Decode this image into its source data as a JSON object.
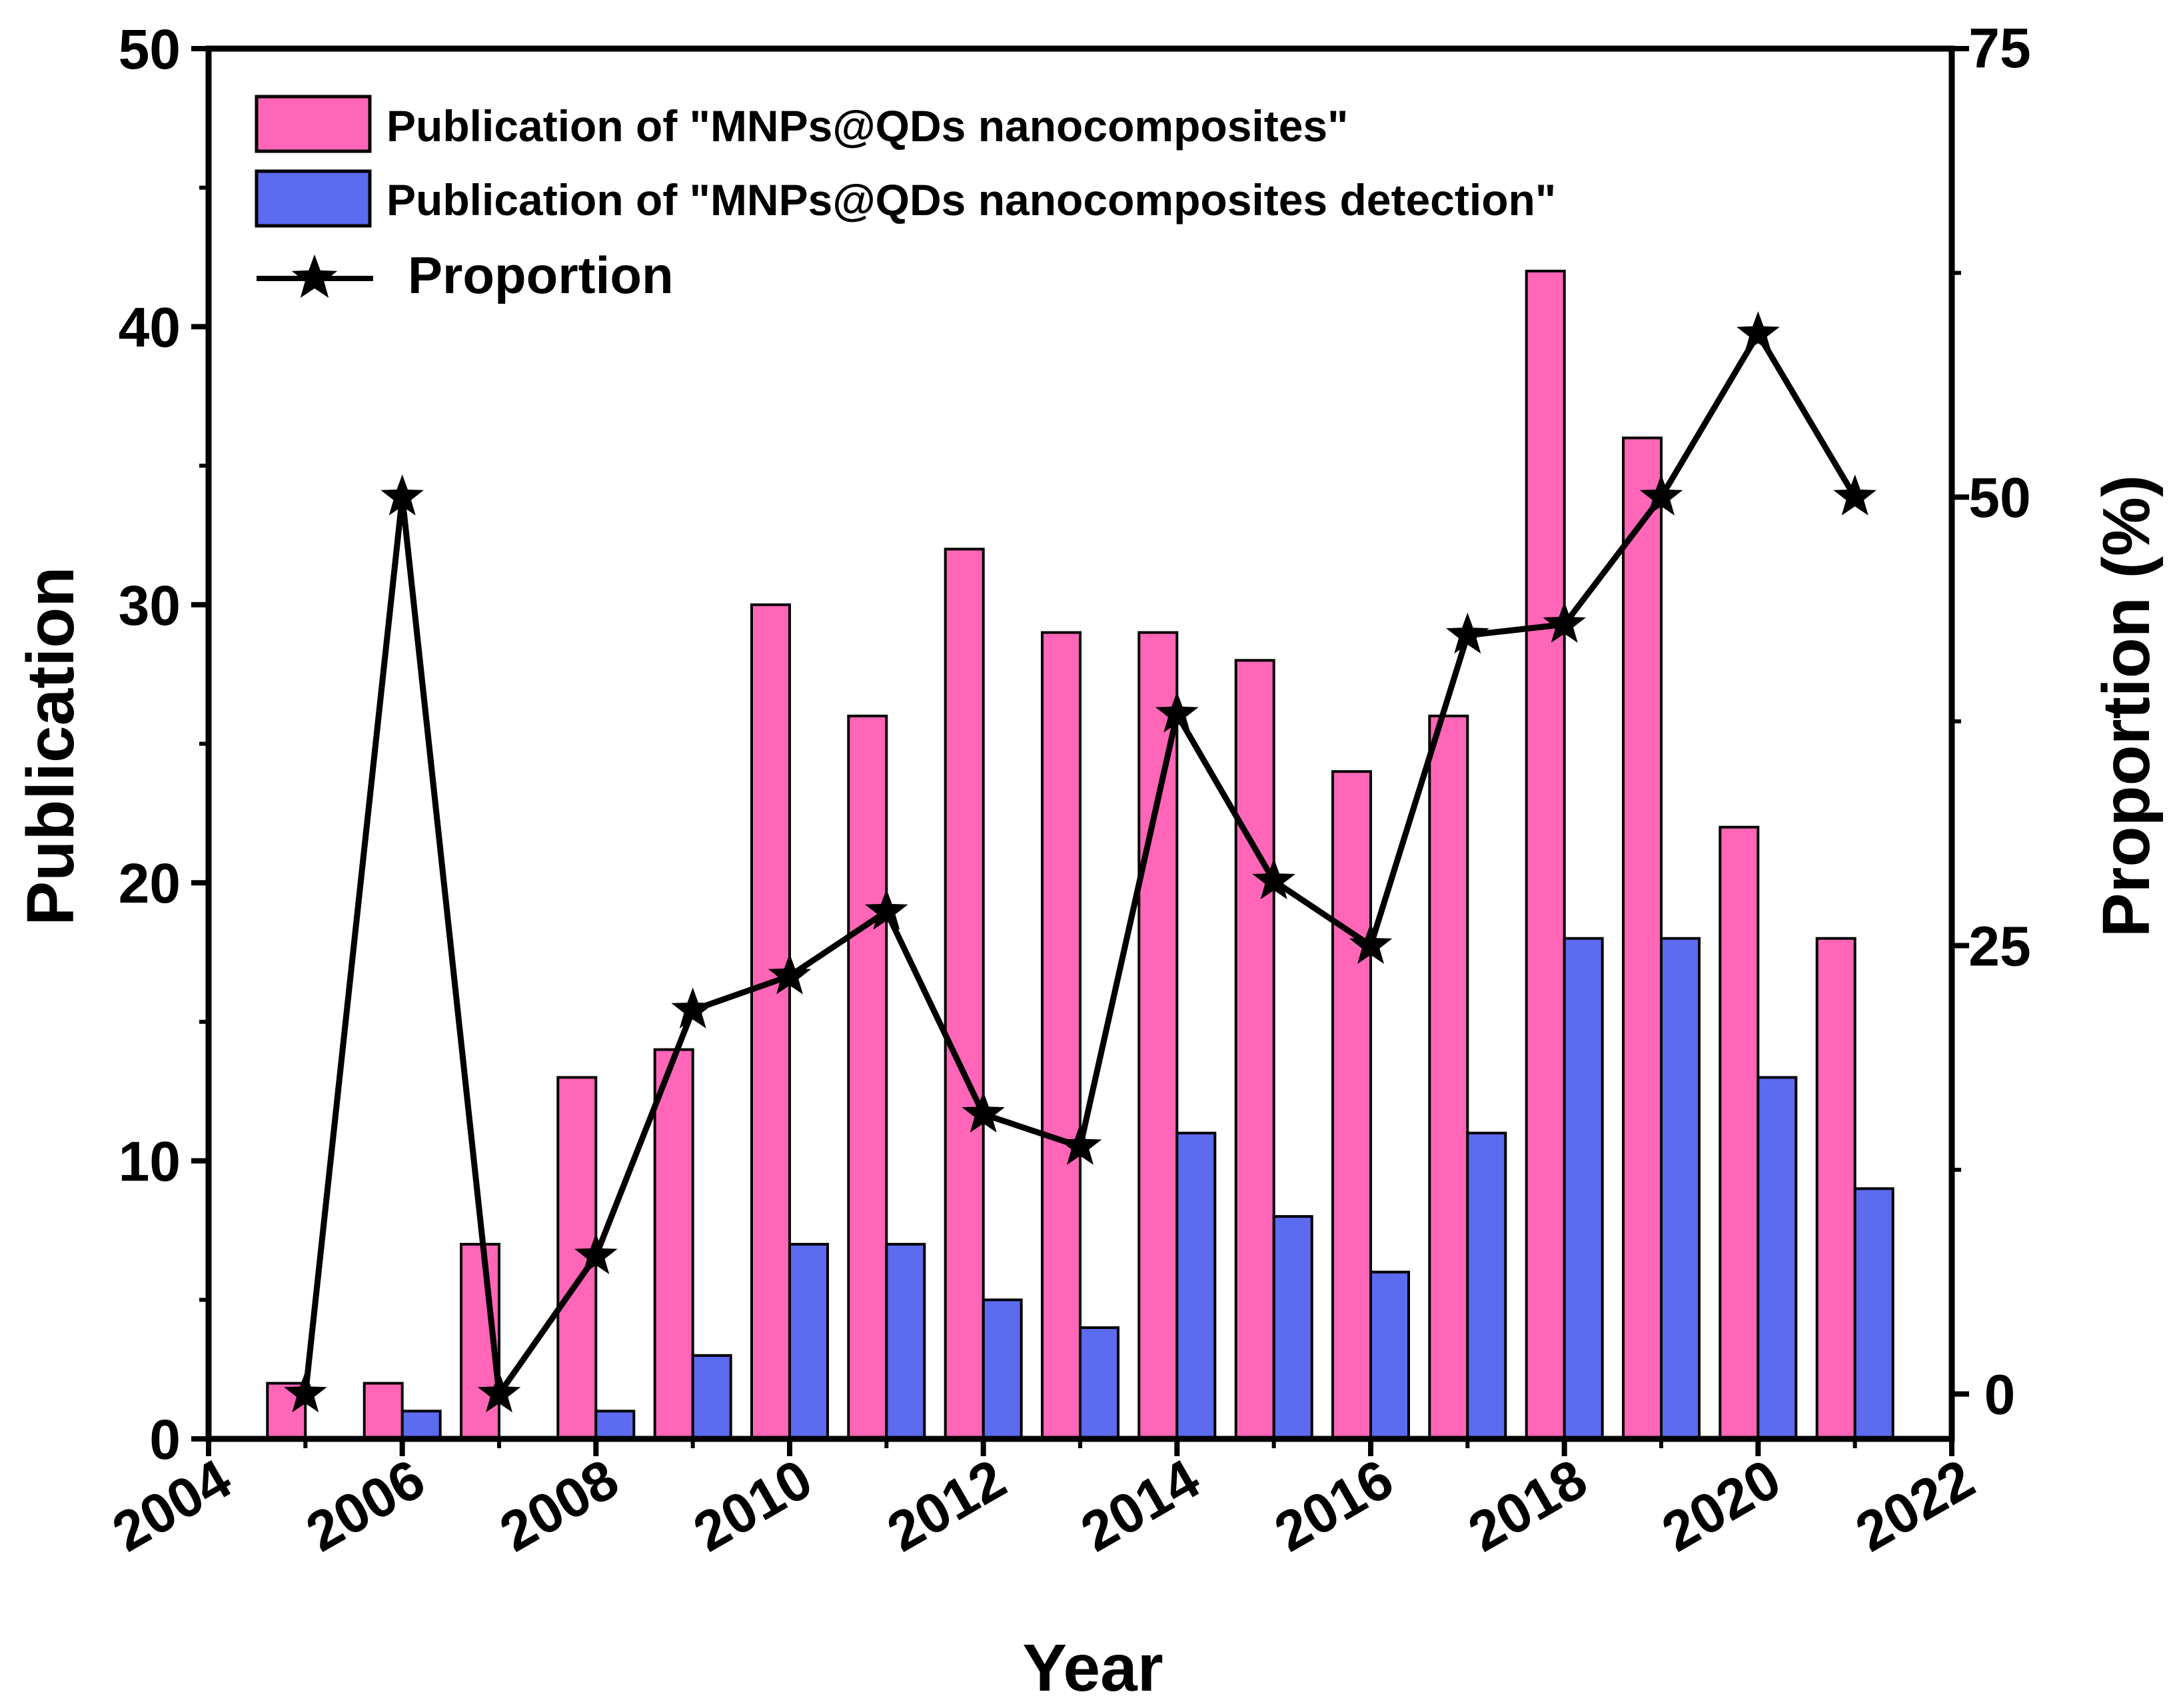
{
  "chart_data": {
    "type": "bar",
    "x": [
      2005,
      2006,
      2007,
      2008,
      2009,
      2010,
      2011,
      2012,
      2013,
      2014,
      2015,
      2016,
      2017,
      2018,
      2019,
      2020,
      2021
    ],
    "series": [
      {
        "name": "Publication of \"MNPs@QDs nanocomposites\"",
        "type": "bar",
        "axis": "left",
        "color": "#ff66b8",
        "values": [
          2,
          2,
          7,
          13,
          14,
          30,
          26,
          32,
          29,
          29,
          28,
          24,
          26,
          42,
          36,
          22,
          18
        ]
      },
      {
        "name": "Publication of \"MNPs@QDs nanocomposites detection\"",
        "type": "bar",
        "axis": "left",
        "color": "#5c6bef",
        "values": [
          0,
          1,
          0,
          1,
          3,
          7,
          7,
          5,
          4,
          11,
          8,
          6,
          11,
          18,
          18,
          13,
          9
        ]
      },
      {
        "name": "Proportion",
        "type": "line",
        "axis": "right",
        "color": "#000000",
        "marker": "star",
        "values": [
          0,
          50,
          0,
          7.7,
          21.4,
          23.3,
          26.9,
          15.6,
          13.8,
          37.9,
          28.6,
          25,
          42.3,
          42.9,
          50,
          59.1,
          50
        ]
      }
    ],
    "xlabel": "Year",
    "ylabel": "Publication",
    "y2label": "Proportion (%)",
    "xlim": [
      2004,
      2022
    ],
    "ylim": [
      0,
      50
    ],
    "y2lim": [
      -2.5,
      75
    ],
    "xticks": [
      2004,
      2006,
      2008,
      2010,
      2012,
      2014,
      2016,
      2018,
      2020,
      2022
    ],
    "yticks": [
      0,
      10,
      20,
      30,
      40,
      50
    ],
    "y2ticks": [
      0,
      25,
      50,
      75
    ],
    "legend_position": "top-left",
    "grid": false
  }
}
